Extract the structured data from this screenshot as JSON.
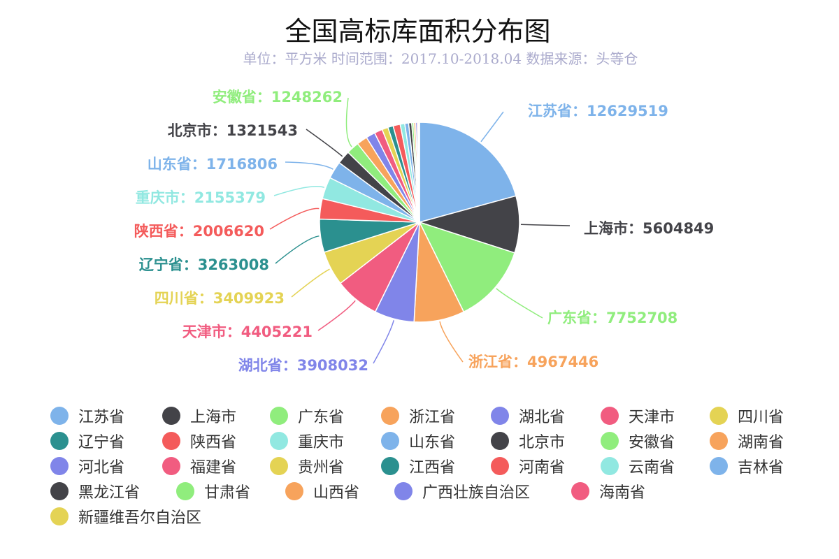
{
  "chart_data": {
    "type": "pie",
    "title": "全国高标库面积分布图",
    "subtitle": "单位：平方米 时间范围：2017.10-2018.04 数据来源：头等仓",
    "label_separator": "：",
    "legend_position": "bottom",
    "palette": [
      "#7eb3ea",
      "#434348",
      "#90ed7d",
      "#f7a35c",
      "#8085e9",
      "#f15c80",
      "#e4d354",
      "#2b908f",
      "#f45b5b",
      "#91e8e1"
    ],
    "slices": [
      {
        "name": "江苏省",
        "value": 12629519,
        "label_shown": true
      },
      {
        "name": "上海市",
        "value": 5604849,
        "label_shown": true
      },
      {
        "name": "广东省",
        "value": 7752708,
        "label_shown": true
      },
      {
        "name": "浙江省",
        "value": 4967446,
        "label_shown": true
      },
      {
        "name": "湖北省",
        "value": 3908032,
        "label_shown": true
      },
      {
        "name": "天津市",
        "value": 4405221,
        "label_shown": true
      },
      {
        "name": "四川省",
        "value": 3409923,
        "label_shown": true
      },
      {
        "name": "辽宁省",
        "value": 3263008,
        "label_shown": true
      },
      {
        "name": "陕西省",
        "value": 2006620,
        "label_shown": true
      },
      {
        "name": "重庆市",
        "value": 2155379,
        "label_shown": true
      },
      {
        "name": "山东省",
        "value": 1716806,
        "label_shown": true
      },
      {
        "name": "北京市",
        "value": 1321543,
        "label_shown": true
      },
      {
        "name": "安徽省",
        "value": 1248262,
        "label_shown": true
      },
      {
        "name": "湖南省",
        "value": 1050000,
        "label_shown": false
      },
      {
        "name": "河北省",
        "value": 900000,
        "label_shown": false
      },
      {
        "name": "福建省",
        "value": 800000,
        "label_shown": false
      },
      {
        "name": "贵州省",
        "value": 600000,
        "label_shown": false
      },
      {
        "name": "江西省",
        "value": 520000,
        "label_shown": false
      },
      {
        "name": "河南省",
        "value": 700000,
        "label_shown": false
      },
      {
        "name": "云南省",
        "value": 450000,
        "label_shown": false
      },
      {
        "name": "吉林省",
        "value": 380000,
        "label_shown": false
      },
      {
        "name": "黑龙江省",
        "value": 300000,
        "label_shown": false
      },
      {
        "name": "甘肃省",
        "value": 200000,
        "label_shown": false
      },
      {
        "name": "山西省",
        "value": 180000,
        "label_shown": false
      },
      {
        "name": "广西壮族自治区",
        "value": 160000,
        "label_shown": false
      },
      {
        "name": "海南省",
        "value": 120000,
        "label_shown": false
      },
      {
        "name": "新疆维吾尔自治区",
        "value": 100000,
        "label_shown": false
      }
    ]
  }
}
